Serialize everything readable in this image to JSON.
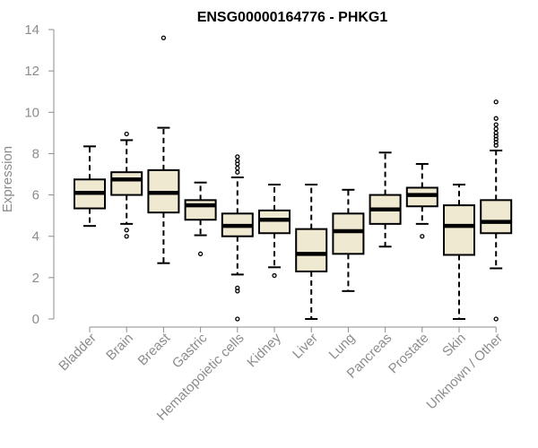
{
  "chart_data": {
    "type": "box",
    "title": "ENSG00000164776 - PHKG1",
    "ylabel": "Expression",
    "xlabel": "",
    "ylim": [
      0,
      14
    ],
    "yticks": [
      0,
      2,
      4,
      6,
      8,
      10,
      12,
      14
    ],
    "categories": [
      "Bladder",
      "Brain",
      "Breast",
      "Gastric",
      "Hematopoietic cells",
      "Kidney",
      "Liver",
      "Lung",
      "Pancreas",
      "Prostate",
      "Skin",
      "Unknown / Other"
    ],
    "boxes": [
      {
        "q1": 5.35,
        "median": 6.1,
        "q3": 6.75,
        "whisker_low": 4.5,
        "whisker_high": 8.35,
        "outliers": []
      },
      {
        "q1": 6.0,
        "median": 6.75,
        "q3": 7.1,
        "whisker_low": 4.6,
        "whisker_high": 8.65,
        "outliers": [
          8.95,
          4.3,
          4.0
        ]
      },
      {
        "q1": 5.15,
        "median": 6.1,
        "q3": 7.2,
        "whisker_low": 2.7,
        "whisker_high": 9.25,
        "outliers": [
          13.6
        ]
      },
      {
        "q1": 4.8,
        "median": 5.5,
        "q3": 5.75,
        "whisker_low": 4.05,
        "whisker_high": 6.6,
        "outliers": [
          3.15
        ]
      },
      {
        "q1": 4.0,
        "median": 4.5,
        "q3": 5.1,
        "whisker_low": 2.15,
        "whisker_high": 6.85,
        "outliers": [
          7.1,
          7.3,
          7.5,
          7.65,
          7.85,
          1.5,
          1.35,
          0.0
        ]
      },
      {
        "q1": 4.15,
        "median": 4.8,
        "q3": 5.25,
        "whisker_low": 2.5,
        "whisker_high": 6.5,
        "outliers": [
          2.1
        ]
      },
      {
        "q1": 2.3,
        "median": 3.15,
        "q3": 4.35,
        "whisker_low": 0.0,
        "whisker_high": 6.5,
        "outliers": []
      },
      {
        "q1": 3.15,
        "median": 4.25,
        "q3": 5.1,
        "whisker_low": 1.35,
        "whisker_high": 6.25,
        "outliers": []
      },
      {
        "q1": 4.6,
        "median": 5.3,
        "q3": 6.0,
        "whisker_low": 3.5,
        "whisker_high": 8.05,
        "outliers": []
      },
      {
        "q1": 5.45,
        "median": 6.0,
        "q3": 6.35,
        "whisker_low": 4.6,
        "whisker_high": 7.5,
        "outliers": [
          4.0
        ]
      },
      {
        "q1": 3.1,
        "median": 4.5,
        "q3": 5.5,
        "whisker_low": 0.0,
        "whisker_high": 6.5,
        "outliers": []
      },
      {
        "q1": 4.15,
        "median": 4.7,
        "q3": 5.75,
        "whisker_low": 2.45,
        "whisker_high": 8.15,
        "outliers": [
          8.4,
          8.55,
          8.7,
          8.85,
          9.0,
          9.2,
          9.4,
          9.7,
          10.5,
          0.0
        ]
      }
    ],
    "grid": false,
    "legend": "none",
    "colors": {
      "box_fill": "#efe9d2",
      "box_stroke": "#000000",
      "median": "#000000",
      "axis": "#8c8c8c",
      "tick_text": "#8c8c8c"
    }
  }
}
